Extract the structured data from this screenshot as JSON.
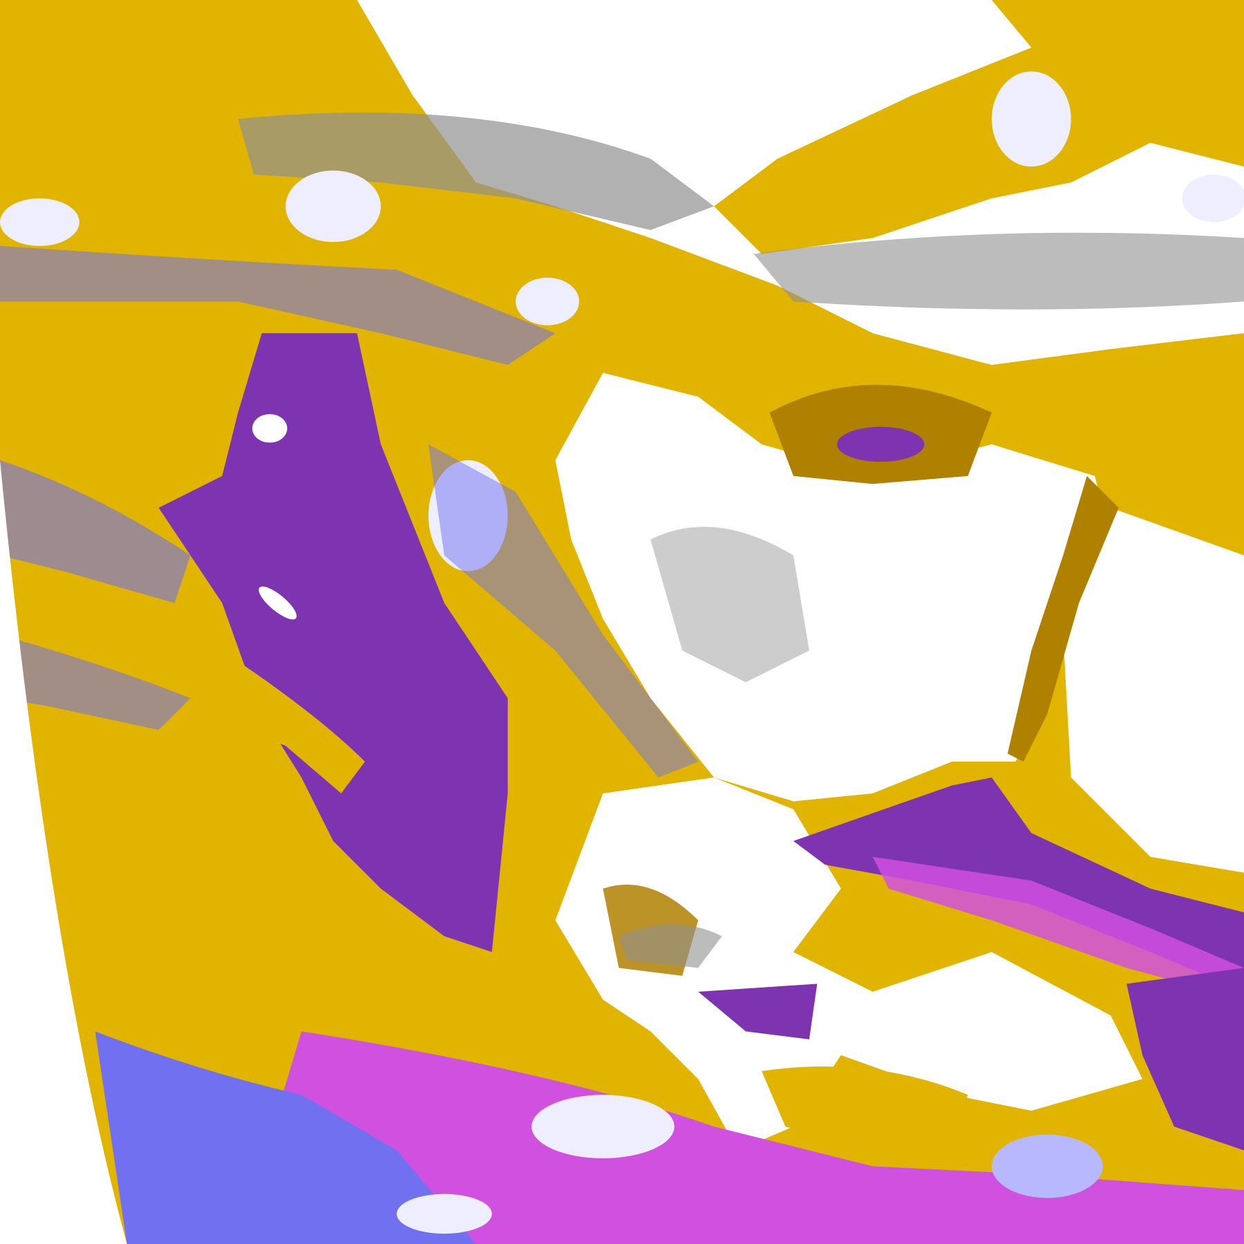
{
  "map": {
    "palette": {
      "clear": "#ffffff",
      "class_gold": "#e0b400",
      "class_dark_gold": "#b08000",
      "class_purple": "#7e34b0",
      "class_periwinkle": "#7070f0",
      "class_magenta": "#d050e0",
      "class_lavender": "#eeeeff",
      "class_light_blue": "#b8b8ff",
      "class_gray": "#909090"
    }
  }
}
